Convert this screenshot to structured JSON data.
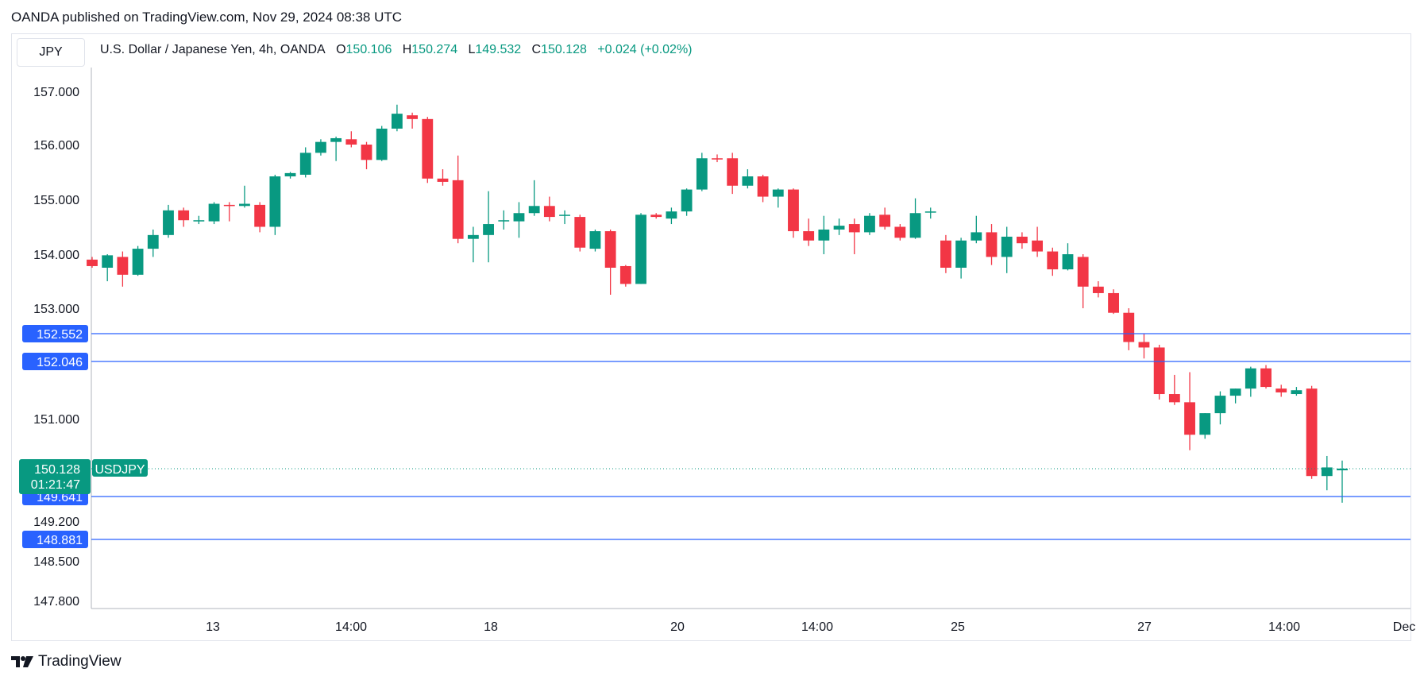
{
  "header": {
    "published": "OANDA published on TradingView.com, Nov 29, 2024 08:38 UTC"
  },
  "toolbar": {
    "symbol": "JPY"
  },
  "legend": {
    "title": "U.S. Dollar / Japanese Yen, 4h, OANDA",
    "o_label": "O",
    "o_value": "150.106",
    "h_label": "H",
    "h_value": "150.274",
    "l_label": "L",
    "l_value": "149.532",
    "c_label": "C",
    "c_value": "150.128",
    "change": "+0.024 (+0.02%)"
  },
  "footer": {
    "brand": "TradingView",
    "logo_icon": "tradingview-logo-icon"
  },
  "colors": {
    "up": "#089981",
    "down": "#f23645",
    "line": "#2962ff",
    "grid": "#e0e3eb",
    "axis_text": "#131722"
  },
  "chart_data": {
    "type": "candlestick",
    "symbol": "USDJPY",
    "interval": "4h",
    "y_ticks": [
      "157.000",
      "156.000",
      "155.000",
      "154.000",
      "153.000",
      "151.000",
      "149.200",
      "148.500",
      "147.800"
    ],
    "x_ticks": [
      "13",
      "14:00",
      "18",
      "20",
      "14:00",
      "25",
      "27",
      "14:00",
      "Dec"
    ],
    "horizontal_lines": [
      {
        "value": 152.552,
        "label": "152.552"
      },
      {
        "value": 152.046,
        "label": "152.046"
      },
      {
        "value": 149.641,
        "label": "149.641"
      },
      {
        "value": 148.881,
        "label": "148.881"
      }
    ],
    "last_price": {
      "value": 150.128,
      "label": "150.128",
      "countdown": "01:21:47",
      "symbol_label": "USDJPY"
    },
    "candles": [
      [
        153.9,
        153.95,
        153.75,
        153.78
      ],
      [
        153.75,
        154.0,
        153.5,
        153.98
      ],
      [
        153.95,
        154.05,
        153.4,
        153.62
      ],
      [
        153.62,
        154.15,
        153.6,
        154.1
      ],
      [
        154.1,
        154.45,
        153.95,
        154.35
      ],
      [
        154.35,
        154.9,
        154.3,
        154.8
      ],
      [
        154.8,
        154.85,
        154.5,
        154.62
      ],
      [
        154.6,
        154.7,
        154.55,
        154.62
      ],
      [
        154.6,
        154.95,
        154.55,
        154.92
      ],
      [
        154.9,
        154.95,
        154.6,
        154.88
      ],
      [
        154.88,
        155.25,
        154.85,
        154.92
      ],
      [
        154.9,
        154.95,
        154.4,
        154.5
      ],
      [
        154.5,
        155.45,
        154.35,
        155.42
      ],
      [
        155.42,
        155.5,
        155.38,
        155.48
      ],
      [
        155.45,
        155.95,
        155.4,
        155.85
      ],
      [
        155.85,
        156.1,
        155.8,
        156.05
      ],
      [
        156.05,
        156.15,
        155.7,
        156.12
      ],
      [
        156.1,
        156.25,
        155.95,
        156.0
      ],
      [
        156.0,
        156.05,
        155.55,
        155.72
      ],
      [
        155.72,
        156.35,
        155.7,
        156.3
      ],
      [
        156.3,
        156.75,
        156.25,
        156.58
      ],
      [
        156.55,
        156.6,
        156.3,
        156.48
      ],
      [
        156.48,
        156.52,
        155.3,
        155.38
      ],
      [
        155.38,
        155.55,
        155.25,
        155.32
      ],
      [
        155.35,
        155.8,
        154.2,
        154.28
      ],
      [
        154.28,
        154.5,
        153.85,
        154.35
      ],
      [
        154.35,
        155.15,
        153.85,
        154.55
      ],
      [
        154.6,
        154.8,
        154.45,
        154.62
      ],
      [
        154.6,
        154.95,
        154.3,
        154.75
      ],
      [
        154.75,
        155.35,
        154.7,
        154.88
      ],
      [
        154.88,
        155.05,
        154.6,
        154.68
      ],
      [
        154.7,
        154.8,
        154.55,
        154.72
      ],
      [
        154.68,
        154.72,
        154.05,
        154.12
      ],
      [
        154.1,
        154.45,
        154.05,
        154.42
      ],
      [
        154.42,
        154.45,
        153.25,
        153.75
      ],
      [
        153.78,
        153.8,
        153.4,
        153.45
      ],
      [
        153.45,
        154.75,
        153.45,
        154.72
      ],
      [
        154.72,
        154.75,
        154.65,
        154.68
      ],
      [
        154.65,
        154.85,
        154.55,
        154.78
      ],
      [
        154.78,
        155.2,
        154.7,
        155.18
      ],
      [
        155.18,
        155.85,
        155.15,
        155.75
      ],
      [
        155.75,
        155.82,
        155.68,
        155.73
      ],
      [
        155.75,
        155.85,
        155.1,
        155.25
      ],
      [
        155.25,
        155.55,
        155.2,
        155.42
      ],
      [
        155.42,
        155.45,
        154.95,
        155.05
      ],
      [
        155.05,
        155.2,
        154.85,
        155.18
      ],
      [
        155.18,
        155.2,
        154.3,
        154.42
      ],
      [
        154.42,
        154.65,
        154.15,
        154.25
      ],
      [
        154.25,
        154.7,
        154.0,
        154.45
      ],
      [
        154.45,
        154.65,
        154.35,
        154.52
      ],
      [
        154.55,
        154.65,
        154.0,
        154.4
      ],
      [
        154.4,
        154.75,
        154.35,
        154.7
      ],
      [
        154.72,
        154.85,
        154.45,
        154.5
      ],
      [
        154.5,
        154.55,
        154.25,
        154.3
      ],
      [
        154.3,
        155.02,
        154.28,
        154.75
      ],
      [
        154.78,
        154.85,
        154.65,
        154.78
      ],
      [
        154.25,
        154.35,
        153.65,
        153.75
      ],
      [
        153.75,
        154.3,
        153.55,
        154.25
      ],
      [
        154.25,
        154.7,
        154.2,
        154.4
      ],
      [
        154.4,
        154.55,
        153.8,
        153.95
      ],
      [
        153.95,
        154.5,
        153.65,
        154.32
      ],
      [
        154.32,
        154.4,
        154.1,
        154.2
      ],
      [
        154.25,
        154.5,
        153.95,
        154.05
      ],
      [
        154.05,
        154.12,
        153.6,
        153.72
      ],
      [
        153.72,
        154.2,
        153.7,
        154.0
      ],
      [
        153.95,
        154.0,
        153.0,
        153.4
      ],
      [
        153.4,
        153.5,
        153.2,
        153.28
      ],
      [
        153.28,
        153.35,
        152.9,
        152.92
      ],
      [
        152.92,
        153.0,
        152.25,
        152.4
      ],
      [
        152.4,
        152.55,
        152.1,
        152.3
      ],
      [
        152.3,
        152.35,
        151.35,
        151.45
      ],
      [
        151.45,
        151.8,
        151.25,
        151.3
      ],
      [
        151.3,
        151.85,
        150.45,
        150.72
      ],
      [
        150.72,
        151.1,
        150.65,
        151.1
      ],
      [
        151.1,
        151.5,
        150.9,
        151.42
      ],
      [
        151.42,
        151.55,
        151.28,
        151.55
      ],
      [
        151.55,
        151.95,
        151.4,
        151.92
      ],
      [
        151.92,
        151.98,
        151.55,
        151.58
      ],
      [
        151.55,
        151.62,
        151.4,
        151.48
      ],
      [
        151.45,
        151.58,
        151.42,
        151.52
      ],
      [
        151.55,
        151.6,
        149.95,
        150.0
      ],
      [
        150.0,
        150.35,
        149.75,
        150.15
      ],
      [
        150.1,
        150.27,
        149.53,
        150.13
      ]
    ],
    "candle_format": [
      "open",
      "high",
      "low",
      "close"
    ]
  }
}
